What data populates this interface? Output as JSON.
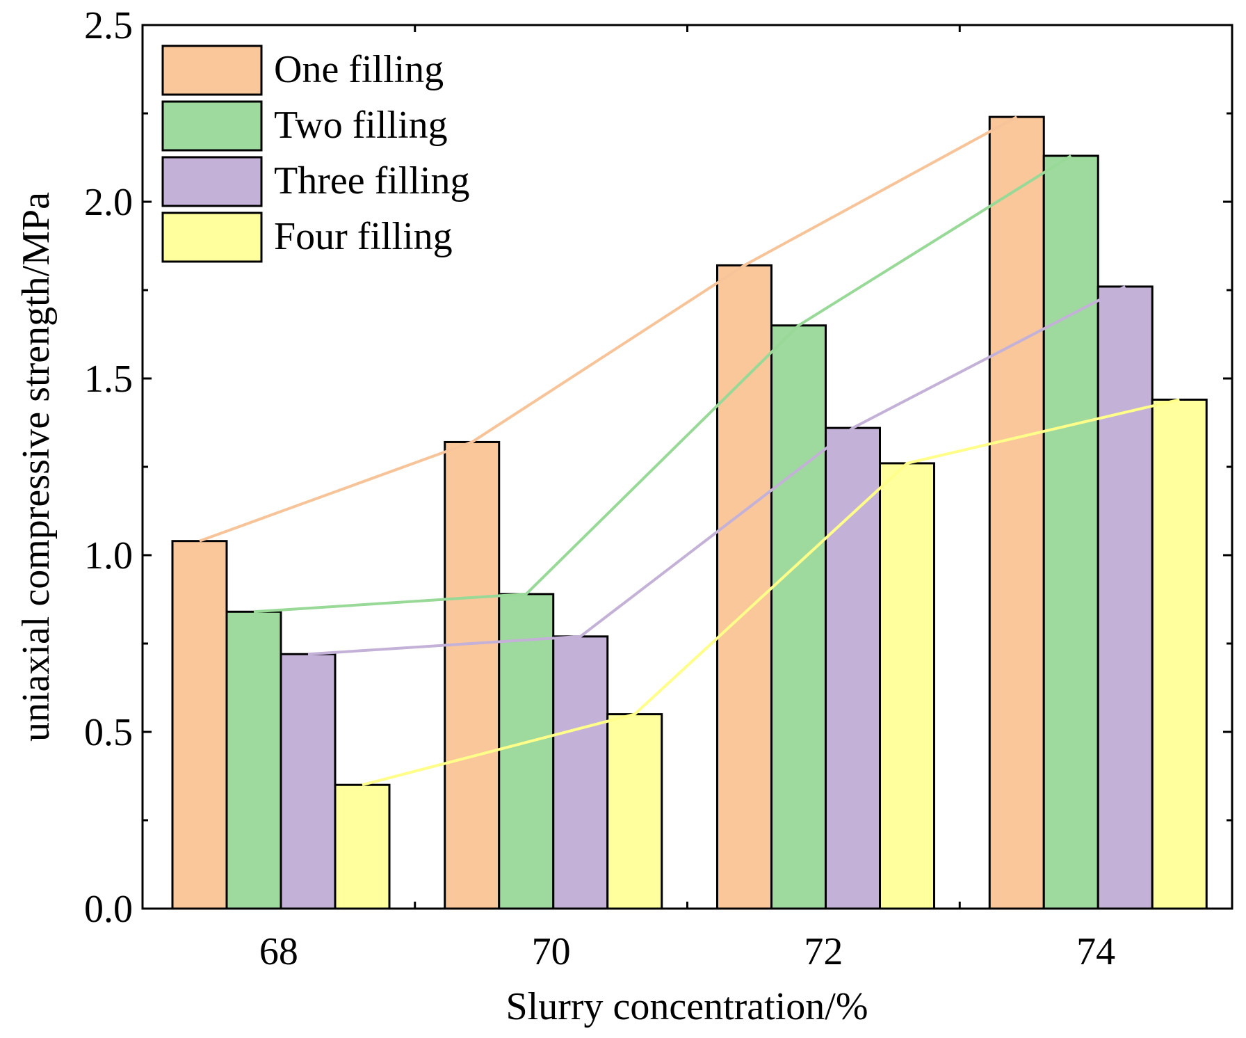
{
  "chart_data": {
    "type": "bar",
    "title": "",
    "xlabel": "Slurry concentration/%",
    "ylabel": "uniaxial compressive strength/MPa",
    "categories": [
      "68",
      "70",
      "72",
      "74"
    ],
    "ylim": [
      0,
      2.5
    ],
    "yticks": [
      "0.0",
      "0.5",
      "1.0",
      "1.5",
      "2.0",
      "2.5"
    ],
    "legend_position": "top-left",
    "trend_lines": true,
    "series": [
      {
        "name": "One filling",
        "color": "#F9C79A",
        "line_color": "#F7C49A",
        "values": [
          1.04,
          1.32,
          1.82,
          2.24
        ]
      },
      {
        "name": "Two filling",
        "color": "#9ED99E",
        "line_color": "#98D998",
        "values": [
          0.84,
          0.89,
          1.65,
          2.13
        ]
      },
      {
        "name": "Three filling",
        "color": "#C3B1D7",
        "line_color": "#C3B1D7",
        "values": [
          0.72,
          0.77,
          1.36,
          1.76
        ]
      },
      {
        "name": "Four filling",
        "color": "#FFFF9E",
        "line_color": "#FFFF8A",
        "values": [
          0.35,
          0.55,
          1.26,
          1.44
        ]
      }
    ]
  }
}
